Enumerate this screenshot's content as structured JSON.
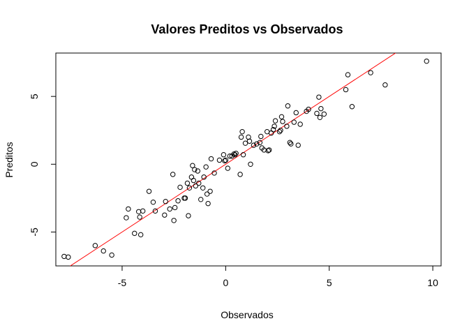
{
  "chart_data": {
    "type": "scatter",
    "title": "Valores Preditos vs Observados",
    "xlabel": "Observados",
    "ylabel": "Preditos",
    "xlim": [
      -8.2,
      10.4
    ],
    "ylim": [
      -7.5,
      8.2
    ],
    "x_ticks": [
      -5,
      0,
      5,
      10
    ],
    "y_ticks": [
      -5,
      0,
      5
    ],
    "grid": false,
    "legend": "none",
    "reference_line": {
      "intercept": 0,
      "slope": 1,
      "color": "#ff0000"
    },
    "point_color": "#000000",
    "points": [
      [
        -7.8,
        -6.8
      ],
      [
        -7.6,
        -6.85
      ],
      [
        -6.3,
        -6.0
      ],
      [
        -5.9,
        -6.4
      ],
      [
        -5.5,
        -6.7
      ],
      [
        -4.8,
        -3.95
      ],
      [
        -4.7,
        -3.3
      ],
      [
        -4.4,
        -5.1
      ],
      [
        -4.2,
        -3.5
      ],
      [
        -4.15,
        -3.9
      ],
      [
        -4.1,
        -5.2
      ],
      [
        -4.0,
        -3.45
      ],
      [
        -3.7,
        -2.0
      ],
      [
        -3.5,
        -2.8
      ],
      [
        -3.4,
        -3.45
      ],
      [
        -2.95,
        -3.75
      ],
      [
        -2.9,
        -2.75
      ],
      [
        -2.7,
        -3.3
      ],
      [
        -2.55,
        -0.75
      ],
      [
        -2.5,
        -4.15
      ],
      [
        -2.45,
        -3.2
      ],
      [
        -2.3,
        -2.7
      ],
      [
        -2.2,
        -1.7
      ],
      [
        -2.0,
        -2.5
      ],
      [
        -1.95,
        -2.5
      ],
      [
        -1.85,
        -1.4
      ],
      [
        -1.8,
        -3.8
      ],
      [
        -1.75,
        -1.75
      ],
      [
        -1.65,
        -0.95
      ],
      [
        -1.6,
        -0.1
      ],
      [
        -1.55,
        -1.2
      ],
      [
        -1.5,
        -0.4
      ],
      [
        -1.45,
        -1.6
      ],
      [
        -1.35,
        -0.5
      ],
      [
        -1.3,
        -1.4
      ],
      [
        -1.2,
        -2.6
      ],
      [
        -1.1,
        -1.75
      ],
      [
        -1.05,
        -0.95
      ],
      [
        -0.95,
        -0.2
      ],
      [
        -0.9,
        -2.2
      ],
      [
        -0.85,
        -2.9
      ],
      [
        -0.75,
        -2.0
      ],
      [
        -0.7,
        0.4
      ],
      [
        -0.55,
        -0.65
      ],
      [
        -0.3,
        0.3
      ],
      [
        -0.1,
        0.7
      ],
      [
        -0.05,
        0.25
      ],
      [
        0.0,
        0.3
      ],
      [
        0.1,
        -0.3
      ],
      [
        0.2,
        0.6
      ],
      [
        0.3,
        0.6
      ],
      [
        0.4,
        0.75
      ],
      [
        0.45,
        0.7
      ],
      [
        0.5,
        0.8
      ],
      [
        0.7,
        -0.75
      ],
      [
        0.75,
        2.0
      ],
      [
        0.8,
        2.4
      ],
      [
        0.85,
        0.7
      ],
      [
        0.95,
        1.55
      ],
      [
        1.1,
        2.0
      ],
      [
        1.15,
        1.7
      ],
      [
        1.2,
        0.0
      ],
      [
        1.35,
        1.4
      ],
      [
        1.5,
        1.5
      ],
      [
        1.65,
        1.6
      ],
      [
        1.7,
        2.05
      ],
      [
        1.75,
        1.2
      ],
      [
        1.85,
        1.05
      ],
      [
        2.0,
        2.4
      ],
      [
        2.05,
        1.0
      ],
      [
        2.1,
        1.05
      ],
      [
        2.2,
        2.3
      ],
      [
        2.3,
        2.55
      ],
      [
        2.35,
        2.8
      ],
      [
        2.4,
        3.2
      ],
      [
        2.6,
        2.4
      ],
      [
        2.65,
        2.5
      ],
      [
        2.7,
        3.5
      ],
      [
        2.75,
        3.15
      ],
      [
        2.95,
        2.8
      ],
      [
        3.0,
        4.3
      ],
      [
        3.1,
        1.6
      ],
      [
        3.15,
        1.5
      ],
      [
        3.3,
        3.1
      ],
      [
        3.4,
        3.8
      ],
      [
        3.5,
        1.4
      ],
      [
        3.6,
        2.95
      ],
      [
        3.9,
        3.9
      ],
      [
        4.0,
        4.05
      ],
      [
        4.4,
        3.75
      ],
      [
        4.5,
        4.95
      ],
      [
        4.55,
        3.45
      ],
      [
        4.6,
        4.1
      ],
      [
        4.75,
        3.7
      ],
      [
        5.8,
        5.5
      ],
      [
        5.9,
        6.6
      ],
      [
        6.1,
        4.25
      ],
      [
        7.0,
        6.75
      ],
      [
        7.7,
        5.85
      ],
      [
        9.7,
        7.6
      ]
    ]
  }
}
